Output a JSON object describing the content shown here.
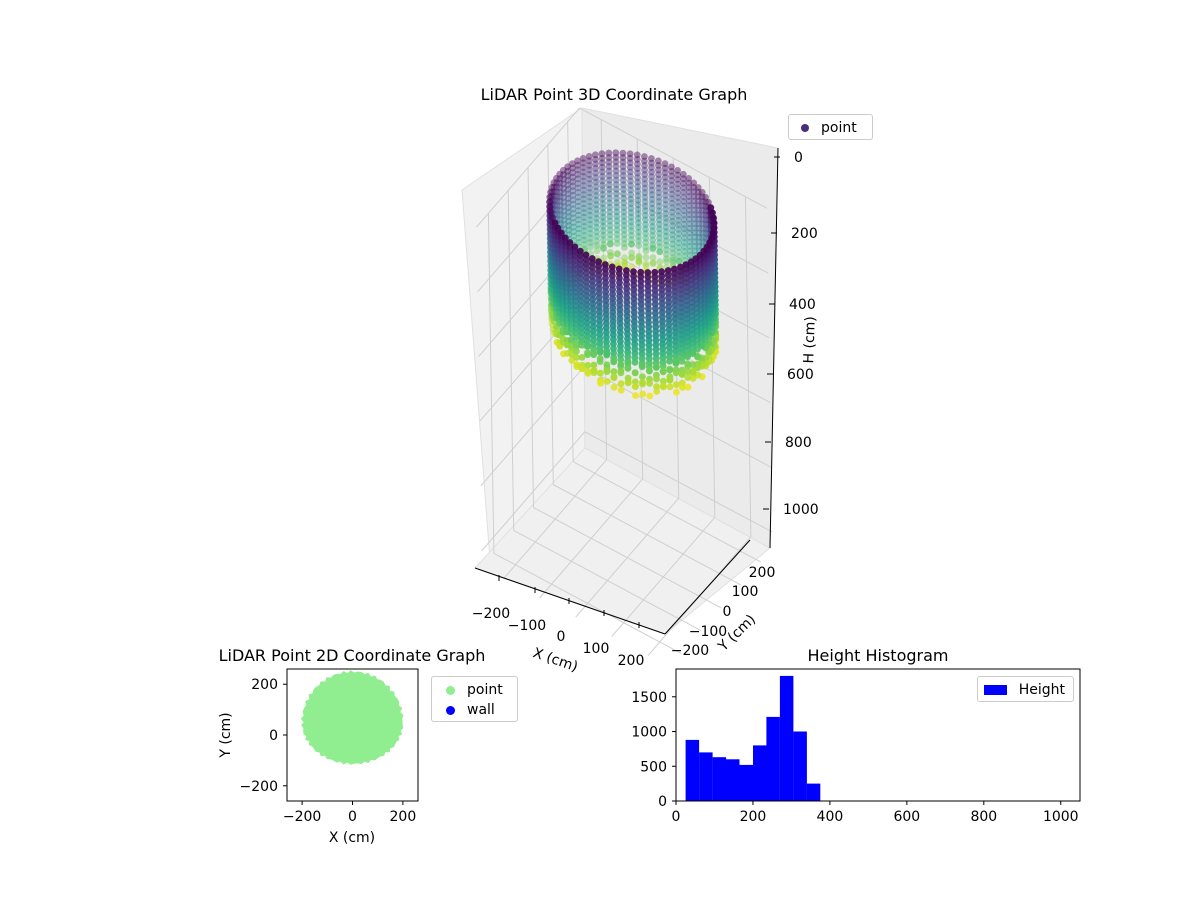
{
  "chart_data": [
    {
      "type": "scatter",
      "title": "LiDAR Point 3D Coordinate Graph",
      "xlabel": "X (cm)",
      "ylabel": "Y (cm)",
      "zlabel": "H (cm)",
      "xticks": [
        "−200",
        "−100",
        "0",
        "100",
        "200"
      ],
      "yticks": [
        "−200",
        "−100",
        "0",
        "100",
        "200"
      ],
      "zticks": [
        "0",
        "200",
        "400",
        "600",
        "800",
        "1000"
      ],
      "xlim": [
        -260,
        260
      ],
      "ylim": [
        -260,
        260
      ],
      "zlim": [
        1050,
        0
      ],
      "colormap": "viridis",
      "description_shape": "hollow cylinder of points",
      "cylinder": {
        "x_center": 0,
        "y_center": 50,
        "radius": 200,
        "h_min": 20,
        "h_max": 390
      },
      "legend": [
        {
          "label": "point",
          "color": "#472d7b"
        }
      ],
      "legend_position": "upper-right"
    },
    {
      "type": "scatter",
      "title": "LiDAR Point 2D Coordinate Graph",
      "xlabel": "X (cm)",
      "ylabel": "Y (cm)",
      "xticks": [
        "−200",
        "0",
        "200"
      ],
      "yticks": [
        "−200",
        "0",
        "200"
      ],
      "xlim": [
        -260,
        260
      ],
      "ylim": [
        -260,
        260
      ],
      "series": [
        {
          "name": "point",
          "color": "#90ee90",
          "region": {
            "x_center": 0,
            "y_center": 50,
            "radius": 200
          }
        },
        {
          "name": "wall",
          "color": "#0000ff",
          "points": []
        }
      ],
      "legend_position": "outside-right"
    },
    {
      "type": "bar",
      "title": "Height Histogram",
      "xlim": [
        0,
        1050
      ],
      "ylim": [
        0,
        1900
      ],
      "xticks": [
        "0",
        "200",
        "400",
        "600",
        "800",
        "1000"
      ],
      "yticks": [
        "0",
        "500",
        "1000",
        "1500"
      ],
      "bin_edges": [
        25,
        60,
        95,
        130,
        165,
        200,
        235,
        270,
        305,
        340,
        375
      ],
      "values": [
        880,
        700,
        630,
        600,
        520,
        800,
        1210,
        1800,
        1000,
        250
      ],
      "series": [
        {
          "name": "Height",
          "color": "#0000ff"
        }
      ],
      "legend_position": "top-right"
    }
  ]
}
